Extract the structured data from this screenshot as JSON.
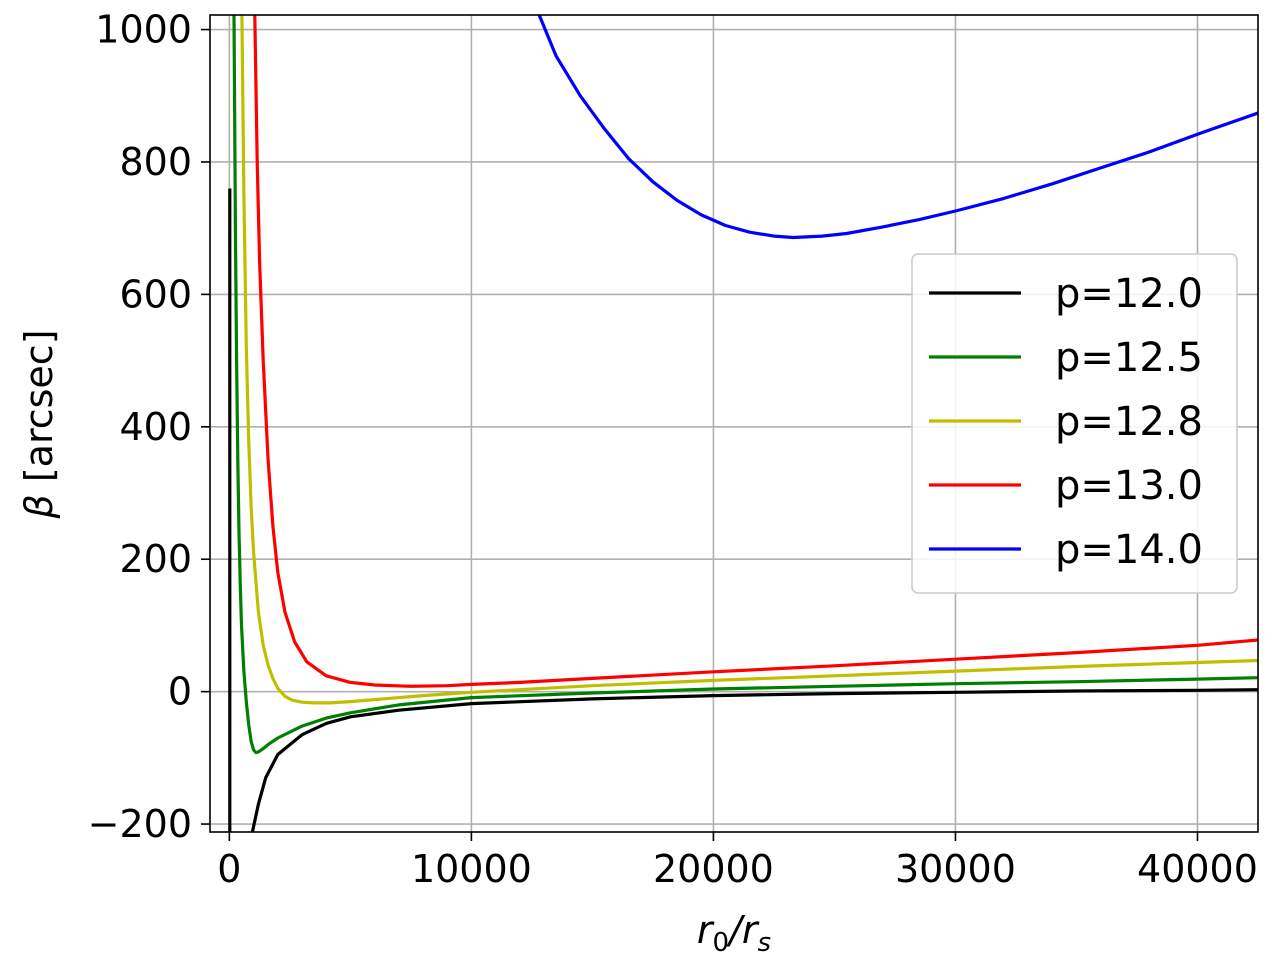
{
  "chart_data": {
    "type": "line",
    "title": "",
    "xlabel": {
      "base": "r",
      "sub": "0",
      "mid": "/r",
      "sub2": "s"
    },
    "ylabel": {
      "symbol": "β",
      "unit": " [arcsec]"
    },
    "xlim": [
      -800,
      42500
    ],
    "ylim": [
      -212,
      1022
    ],
    "xticks": [
      {
        "value": 0,
        "label": "0"
      },
      {
        "value": 10000,
        "label": "10000"
      },
      {
        "value": 20000,
        "label": "20000"
      },
      {
        "value": 30000,
        "label": "30000"
      },
      {
        "value": 40000,
        "label": "40000"
      }
    ],
    "yticks": [
      {
        "value": -200,
        "label": "−200"
      },
      {
        "value": 0,
        "label": "0"
      },
      {
        "value": 200,
        "label": "200"
      },
      {
        "value": 400,
        "label": "400"
      },
      {
        "value": 600,
        "label": "600"
      },
      {
        "value": 800,
        "label": "800"
      },
      {
        "value": 1000,
        "label": "1000"
      }
    ],
    "grid": true,
    "legend_position": "center-right",
    "series": [
      {
        "name": "p=12.0",
        "color": "#000000",
        "segments": [
          [
            [
              20,
              760
            ],
            [
              20,
              -212
            ]
          ],
          [
            [
              950,
              -212
            ],
            [
              1200,
              -170
            ],
            [
              1500,
              -130
            ],
            [
              2000,
              -95
            ],
            [
              3000,
              -65
            ],
            [
              4000,
              -48
            ],
            [
              5000,
              -38
            ],
            [
              7000,
              -28
            ],
            [
              10000,
              -18
            ],
            [
              15000,
              -11
            ],
            [
              20000,
              -6
            ],
            [
              25000,
              -3
            ],
            [
              30000,
              -1
            ],
            [
              35000,
              1
            ],
            [
              40000,
              2
            ],
            [
              42500,
              3
            ]
          ]
        ]
      },
      {
        "name": "p=12.5",
        "color": "#008000",
        "segments": [
          [
            [
              190,
              1022
            ],
            [
              250,
              700
            ],
            [
              300,
              500
            ],
            [
              350,
              350
            ],
            [
              400,
              240
            ],
            [
              450,
              160
            ],
            [
              500,
              100
            ],
            [
              600,
              30
            ],
            [
              700,
              -15
            ],
            [
              800,
              -50
            ],
            [
              900,
              -75
            ],
            [
              1000,
              -88
            ],
            [
              1100,
              -92
            ],
            [
              1200,
              -91
            ],
            [
              1400,
              -86
            ],
            [
              1600,
              -80
            ],
            [
              2000,
              -70
            ],
            [
              3000,
              -52
            ],
            [
              4000,
              -40
            ],
            [
              5000,
              -32
            ],
            [
              7000,
              -20
            ],
            [
              10000,
              -9
            ],
            [
              15000,
              -2
            ],
            [
              20000,
              4
            ],
            [
              25000,
              8
            ],
            [
              30000,
              12
            ],
            [
              35000,
              15
            ],
            [
              40000,
              19
            ],
            [
              42500,
              21
            ]
          ]
        ]
      },
      {
        "name": "p=12.8",
        "color": "#bfbf00",
        "segments": [
          [
            [
              520,
              1022
            ],
            [
              600,
              750
            ],
            [
              700,
              520
            ],
            [
              800,
              380
            ],
            [
              900,
              280
            ],
            [
              1000,
              210
            ],
            [
              1200,
              120
            ],
            [
              1400,
              70
            ],
            [
              1600,
              40
            ],
            [
              1800,
              20
            ],
            [
              2000,
              5
            ],
            [
              2300,
              -7
            ],
            [
              2600,
              -13
            ],
            [
              3000,
              -16
            ],
            [
              3500,
              -17
            ],
            [
              4200,
              -17
            ],
            [
              5000,
              -15
            ],
            [
              6000,
              -12
            ],
            [
              8000,
              -6
            ],
            [
              10000,
              -1
            ],
            [
              15000,
              9
            ],
            [
              20000,
              17
            ],
            [
              25000,
              24
            ],
            [
              30000,
              31
            ],
            [
              35000,
              38
            ],
            [
              40000,
              44
            ],
            [
              42500,
              47
            ]
          ]
        ]
      },
      {
        "name": "p=13.0",
        "color": "#ff0000",
        "segments": [
          [
            [
              1050,
              1022
            ],
            [
              1150,
              800
            ],
            [
              1250,
              650
            ],
            [
              1400,
              500
            ],
            [
              1600,
              350
            ],
            [
              1800,
              250
            ],
            [
              2000,
              180
            ],
            [
              2300,
              120
            ],
            [
              2700,
              75
            ],
            [
              3200,
              45
            ],
            [
              4000,
              24
            ],
            [
              5000,
              14
            ],
            [
              6000,
              10
            ],
            [
              7500,
              8
            ],
            [
              9000,
              9
            ],
            [
              10000,
              11
            ],
            [
              12000,
              14
            ],
            [
              15000,
              20
            ],
            [
              20000,
              30
            ],
            [
              25000,
              39
            ],
            [
              30000,
              49
            ],
            [
              35000,
              59
            ],
            [
              40000,
              70
            ],
            [
              42500,
              78
            ]
          ]
        ]
      },
      {
        "name": "p=14.0",
        "color": "#0000ff",
        "segments": [
          [
            [
              12800,
              1022
            ],
            [
              13500,
              960
            ],
            [
              14500,
              900
            ],
            [
              15500,
              850
            ],
            [
              16500,
              805
            ],
            [
              17500,
              770
            ],
            [
              18500,
              742
            ],
            [
              19500,
              720
            ],
            [
              20500,
              704
            ],
            [
              21500,
              694
            ],
            [
              22500,
              688
            ],
            [
              23300,
              686
            ],
            [
              24500,
              688
            ],
            [
              25500,
              692
            ],
            [
              27000,
              702
            ],
            [
              28500,
              713
            ],
            [
              30000,
              726
            ],
            [
              32000,
              745
            ],
            [
              34000,
              767
            ],
            [
              36000,
              791
            ],
            [
              38000,
              815
            ],
            [
              40000,
              842
            ],
            [
              42500,
              874
            ]
          ]
        ]
      }
    ]
  }
}
